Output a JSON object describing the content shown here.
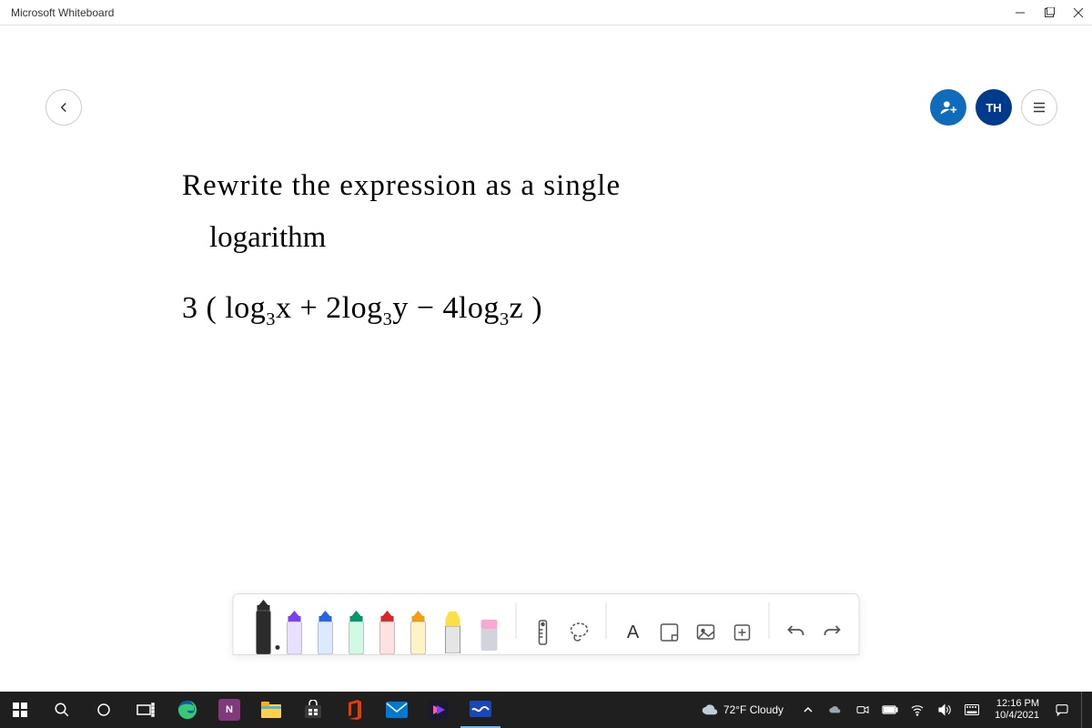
{
  "window": {
    "title": "Microsoft Whiteboard"
  },
  "header": {
    "user_initials": "TH"
  },
  "canvas": {
    "handwriting": {
      "line1": "Rewrite the expression as  a  single",
      "line2": "logarithm",
      "line3_html": "3 ( log<sub>3</sub>x + 2log<sub>3</sub>y − 4log<sub>3</sub>z )"
    }
  },
  "pens": [
    {
      "name": "pen-black",
      "body": "#2b2b2b",
      "tip": "#2b2b2b",
      "active": true
    },
    {
      "name": "pen-purple",
      "body": "#e8e0ff",
      "tip": "#7b3ff2",
      "active": false
    },
    {
      "name": "pen-blue",
      "body": "#dbeafe",
      "tip": "#2563eb",
      "active": false
    },
    {
      "name": "pen-green",
      "body": "#d1fae5",
      "tip": "#059669",
      "active": false
    },
    {
      "name": "pen-red",
      "body": "#fee2e2",
      "tip": "#dc2626",
      "active": false
    },
    {
      "name": "pen-rainbow",
      "body": "#fef3c7",
      "tip": "#f59e0b",
      "active": false
    }
  ],
  "tools": {
    "highlighter_color": "#fde047",
    "eraser_color": "#f9a8d4"
  },
  "tray_right": {
    "text_label": "A"
  },
  "taskbar": {
    "apps": [
      {
        "name": "start",
        "color": "#ffffff"
      },
      {
        "name": "search",
        "color": "#ffffff"
      },
      {
        "name": "cortana",
        "color": "#ffffff"
      },
      {
        "name": "task-view",
        "color": "#ffffff"
      },
      {
        "name": "edge",
        "bg": "linear-gradient(135deg,#0c59a4,#33c481)"
      },
      {
        "name": "onenote",
        "bg": "#80397b"
      },
      {
        "name": "explorer",
        "bg": "#ffcf48"
      },
      {
        "name": "store",
        "bg": "#2b2b2b"
      },
      {
        "name": "office",
        "bg": "#d83b01"
      },
      {
        "name": "mail",
        "bg": "#0078d4"
      },
      {
        "name": "clipchamp",
        "bg": "linear-gradient(135deg,#ff5ba2,#7b3ff2)"
      },
      {
        "name": "whiteboard",
        "bg": "#1a47b8",
        "active": true
      }
    ],
    "weather": {
      "text": "72°F Cloudy"
    },
    "time": "12:16 PM",
    "date": "10/4/2021"
  },
  "colors": {
    "accent": "#0f6cbd",
    "user_avatar": "#003a8c",
    "taskbar_bg": "#1f1f1f"
  }
}
